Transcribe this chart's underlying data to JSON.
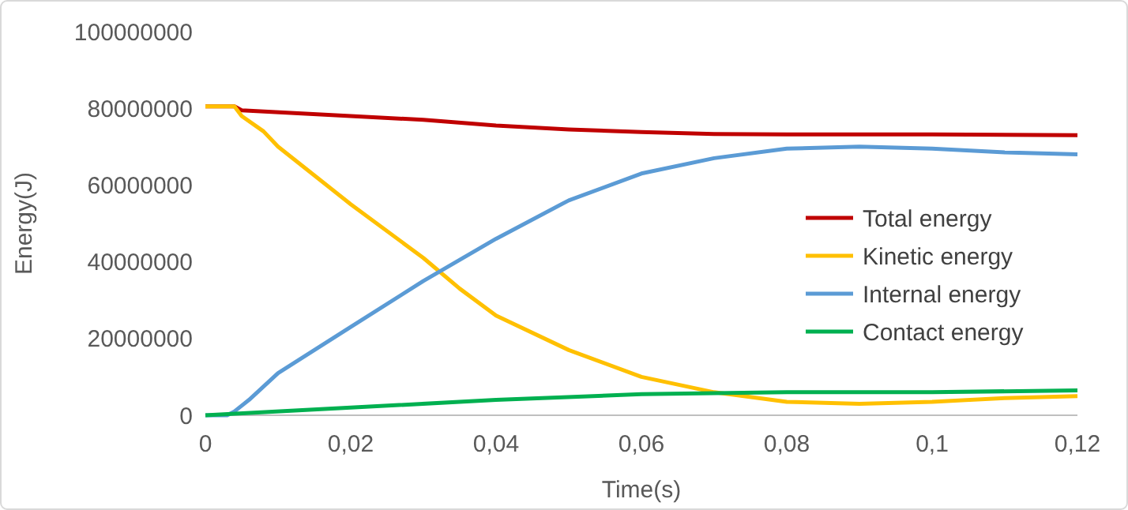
{
  "chart_data": {
    "type": "line",
    "xlabel": "Time(s)",
    "ylabel": "Energy(J)",
    "xlim": [
      0,
      0.12
    ],
    "ylim": [
      0,
      100000000
    ],
    "xticks": [
      0,
      {
        "value": 0.02,
        "label": "0,02"
      },
      {
        "value": 0.04,
        "label": "0,04"
      },
      {
        "value": 0.06,
        "label": "0,06"
      },
      {
        "value": 0.08,
        "label": "0,08"
      },
      {
        "value": 0.1,
        "label": "0,1"
      },
      {
        "value": 0.12,
        "label": "0,12"
      }
    ],
    "yticks": [
      0,
      20000000,
      40000000,
      60000000,
      80000000,
      100000000
    ],
    "grid": false,
    "legend": "right",
    "marker": "none",
    "line_style": "solid",
    "series": [
      {
        "name": "Total energy",
        "color": "#c00000",
        "x": [
          0,
          0.004,
          0.005,
          0.02,
          0.03,
          0.04,
          0.05,
          0.06,
          0.07,
          0.08,
          0.1,
          0.12
        ],
        "values": [
          80500000,
          80500000,
          79500000,
          78000000,
          77000000,
          75500000,
          74500000,
          73800000,
          73300000,
          73200000,
          73200000,
          73000000
        ]
      },
      {
        "name": "Kinetic energy",
        "color": "#ffc000",
        "x": [
          0,
          0.004,
          0.005,
          0.008,
          0.01,
          0.02,
          0.03,
          0.035,
          0.04,
          0.05,
          0.06,
          0.07,
          0.08,
          0.09,
          0.1,
          0.11,
          0.12
        ],
        "values": [
          80500000,
          80500000,
          78000000,
          74000000,
          70000000,
          55000000,
          41000000,
          33000000,
          26000000,
          17000000,
          10000000,
          6000000,
          3500000,
          3000000,
          3500000,
          4500000,
          5000000
        ]
      },
      {
        "name": "Internal energy",
        "color": "#5b9bd5",
        "x": [
          0,
          0.003,
          0.004,
          0.006,
          0.01,
          0.02,
          0.03,
          0.04,
          0.05,
          0.06,
          0.07,
          0.08,
          0.09,
          0.1,
          0.11,
          0.12
        ],
        "values": [
          0,
          0,
          1000000,
          4000000,
          11000000,
          23000000,
          35000000,
          46000000,
          56000000,
          63000000,
          67000000,
          69500000,
          70000000,
          69500000,
          68500000,
          68000000
        ]
      },
      {
        "name": "Contact energy",
        "color": "#00b050",
        "x": [
          0,
          0.02,
          0.04,
          0.06,
          0.08,
          0.1,
          0.12
        ],
        "values": [
          0,
          2000000,
          4000000,
          5500000,
          6000000,
          6000000,
          6500000
        ]
      }
    ]
  }
}
